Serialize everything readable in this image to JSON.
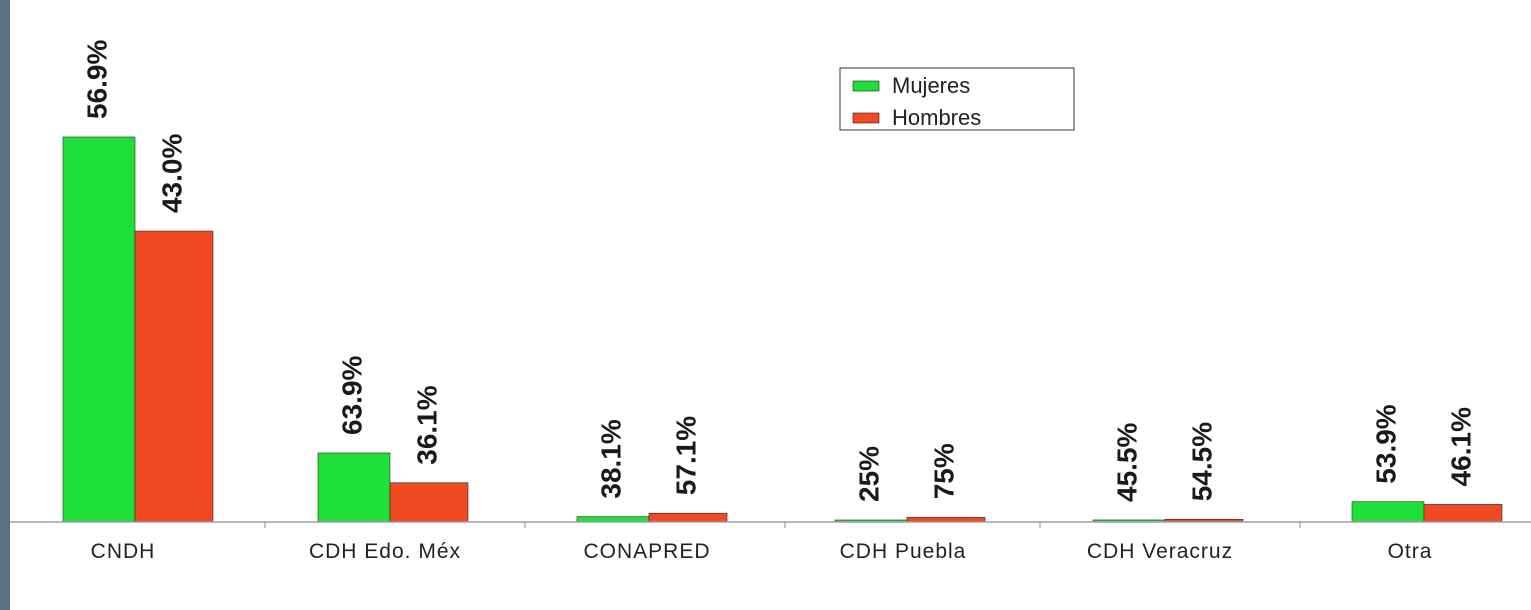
{
  "chart_data": {
    "type": "bar",
    "categories": [
      "CNDH",
      "CDH Edo. Méx",
      "CONAPRED",
      "CDH Puebla",
      "CDH Veracruz",
      "Otra"
    ],
    "series": [
      {
        "name": "Mujeres",
        "color": "#1fe03a",
        "values": [
          56.9,
          10.2,
          0.8,
          0.2,
          0.3,
          3.0
        ],
        "labels": [
          "56.9%",
          "63.9%",
          "38.1%",
          "25%",
          "45.5%",
          "53.9%"
        ]
      },
      {
        "name": "Hombres",
        "color": "#f04a22",
        "values": [
          43.0,
          5.8,
          1.3,
          0.7,
          0.4,
          2.6
        ],
        "labels": [
          "43.0%",
          "36.1%",
          "57.1%",
          "75%",
          "54.5%",
          "46.1%"
        ]
      }
    ],
    "legend_position": "top-center",
    "grid": false
  }
}
